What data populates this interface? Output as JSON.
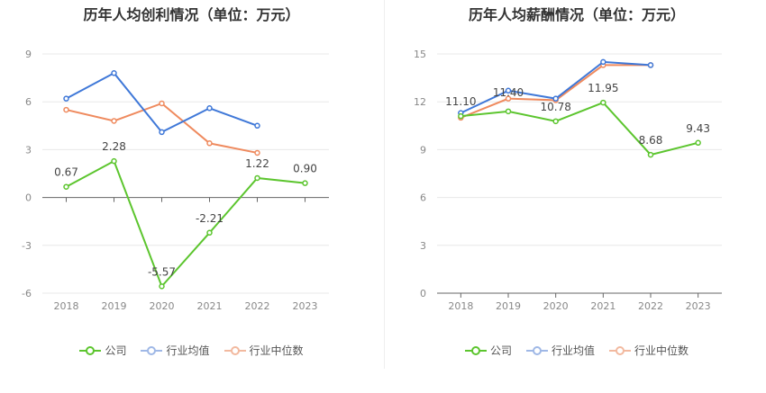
{
  "chart_data": [
    {
      "type": "line",
      "title": "历年人均创利情况（单位：万元）",
      "categories": [
        "2018",
        "2019",
        "2020",
        "2021",
        "2022",
        "2023"
      ],
      "ylim": [
        -6,
        9
      ],
      "yticks": [
        9,
        6,
        3,
        0,
        -3,
        -6
      ],
      "yticklabels": [
        "9",
        "6",
        "3",
        "0",
        "-3",
        "-6"
      ],
      "grid": true,
      "legend_position": "bottom",
      "series": [
        {
          "name": "公司",
          "color": "#5cc52e",
          "values": [
            0.67,
            2.28,
            -5.57,
            -2.21,
            1.22,
            0.9
          ],
          "labels": [
            "0.67",
            "2.28",
            "-5.57",
            "-2.21",
            "1.22",
            "0.90"
          ]
        },
        {
          "name": "行业均值",
          "color": "#3f78d8",
          "values": [
            6.2,
            7.8,
            4.1,
            5.6,
            4.5,
            null
          ]
        },
        {
          "name": "行业中位数",
          "color": "#ef8a5e",
          "values": [
            5.5,
            4.8,
            5.9,
            3.4,
            2.8,
            null
          ]
        }
      ]
    },
    {
      "type": "line",
      "title": "历年人均薪酬情况（单位：万元）",
      "categories": [
        "2018",
        "2019",
        "2020",
        "2021",
        "2022",
        "2023"
      ],
      "ylim": [
        0,
        15
      ],
      "yticks": [
        15,
        12,
        9,
        6,
        3,
        0
      ],
      "yticklabels": [
        "15",
        "12",
        "9",
        "6",
        "3",
        "0"
      ],
      "grid": true,
      "legend_position": "bottom",
      "series": [
        {
          "name": "公司",
          "color": "#5cc52e",
          "values": [
            11.1,
            11.4,
            10.78,
            11.95,
            8.68,
            9.43
          ],
          "labels": [
            "11.10",
            "11.40",
            "10.78",
            "11.95",
            "8.68",
            "9.43"
          ]
        },
        {
          "name": "行业均值",
          "color": "#3f78d8",
          "values": [
            11.3,
            12.7,
            12.2,
            14.5,
            14.3,
            null
          ]
        },
        {
          "name": "行业中位数",
          "color": "#ef8a5e",
          "values": [
            11.0,
            12.2,
            12.1,
            14.3,
            14.3,
            null
          ]
        }
      ]
    }
  ]
}
